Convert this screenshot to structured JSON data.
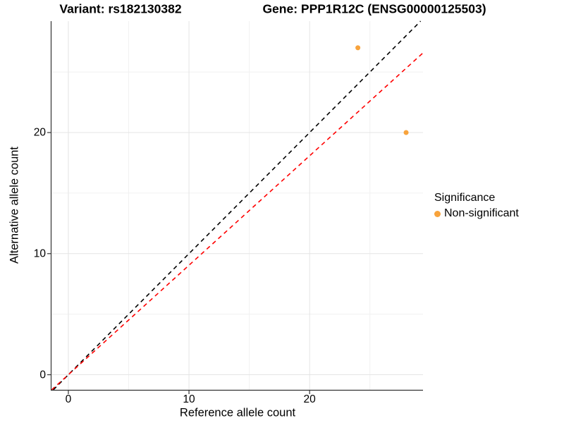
{
  "titles": {
    "variant": "Variant: rs182130382",
    "gene": "Gene: PPP1R12C (ENSG00000125503)"
  },
  "axes": {
    "x_label": "Reference allele count",
    "y_label": "Alternative allele count",
    "x_ticks": [
      0,
      10,
      20
    ],
    "y_ticks": [
      0,
      10,
      20
    ]
  },
  "legend": {
    "title": "Significance",
    "items": [
      {
        "label": "Non-significant",
        "color": "#F8A33C"
      }
    ]
  },
  "colors": {
    "point": "#F8A33C",
    "identity_line": "#000000",
    "ratio_line": "#FF0000",
    "grid_major": "#E4E4E4",
    "grid_minor": "#F1F1F1",
    "axis_line": "#333333",
    "tick_mark": "#333333",
    "background": "#FFFFFF"
  },
  "chart_data": {
    "type": "scatter",
    "title": "Variant: rs182130382    Gene: PPP1R12C (ENSG00000125503)",
    "xlabel": "Reference allele count",
    "ylabel": "Alternative allele count",
    "xlim": [
      -1.4,
      29.4
    ],
    "ylim": [
      -1.25,
      29.2
    ],
    "major_ticks": [
      0,
      10,
      20
    ],
    "minor_gridlines": [
      5,
      15,
      25
    ],
    "grid": true,
    "legend_position": "right",
    "series": [
      {
        "name": "Non-significant",
        "points": [
          {
            "x": 24,
            "y": 27
          },
          {
            "x": 28,
            "y": 20
          }
        ]
      }
    ],
    "reference_lines": [
      {
        "name": "identity",
        "slope": 1.0,
        "intercept": 0,
        "linetype": "dashed",
        "color": "#000000"
      },
      {
        "name": "expected-ratio",
        "slope": 0.904,
        "intercept": 0,
        "linetype": "dashed",
        "color": "#FF0000"
      }
    ]
  }
}
